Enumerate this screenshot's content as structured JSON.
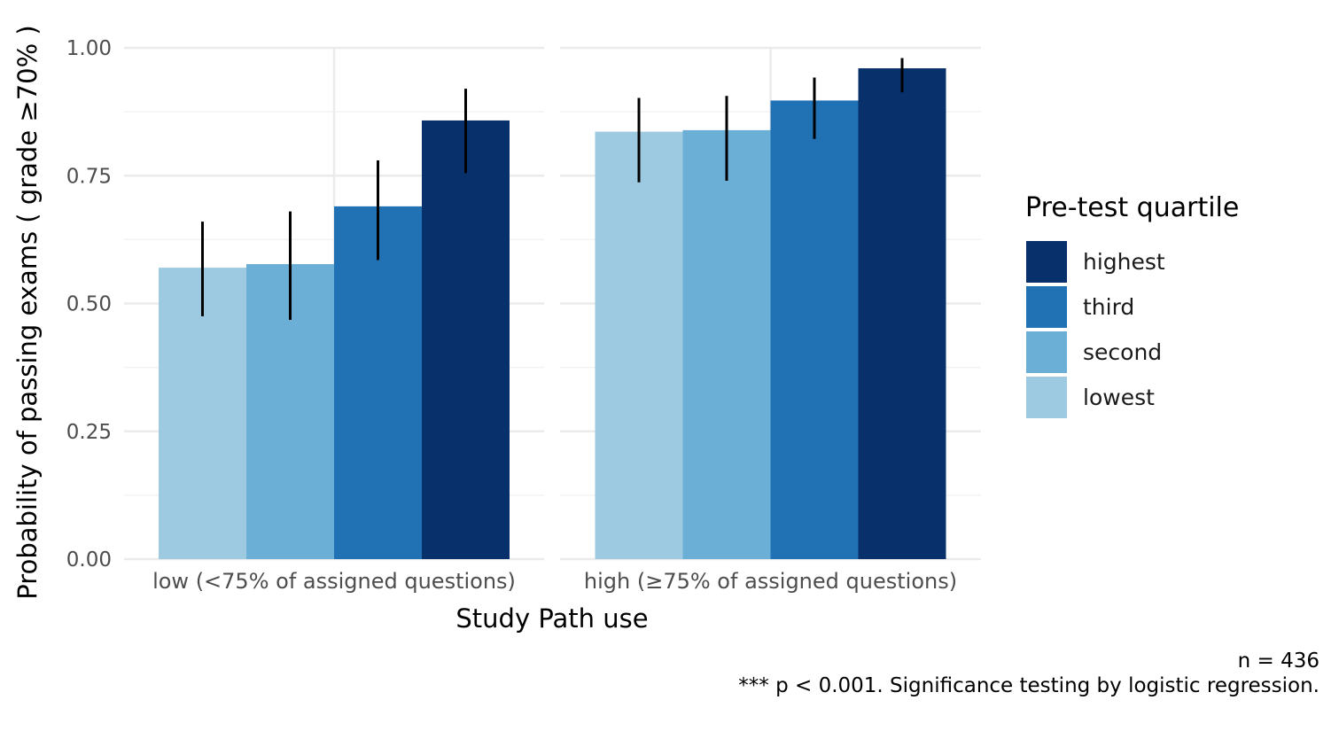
{
  "chart_data": {
    "type": "bar",
    "y_label": "Probability of passing exams ( grade ≥70% )",
    "x_label": "Study Path use",
    "ylim": [
      0,
      1
    ],
    "y_ticks": [
      "0.00",
      "0.25",
      "0.50",
      "0.75",
      "1.00"
    ],
    "y_tick_values": [
      0,
      0.25,
      0.5,
      0.75,
      1.0
    ],
    "grid": true,
    "legend": {
      "title": "Pre-test quartile",
      "placement": "right",
      "entries": [
        "highest",
        "third",
        "second",
        "lowest"
      ]
    },
    "facets": [
      {
        "label": "low (<75% of assigned questions)",
        "bars": [
          {
            "group": "lowest",
            "value": 0.57,
            "ci_low": 0.475,
            "ci_high": 0.66
          },
          {
            "group": "second",
            "value": 0.577,
            "ci_low": 0.468,
            "ci_high": 0.68
          },
          {
            "group": "third",
            "value": 0.69,
            "ci_low": 0.585,
            "ci_high": 0.78
          },
          {
            "group": "highest",
            "value": 0.858,
            "ci_low": 0.755,
            "ci_high": 0.92
          }
        ]
      },
      {
        "label": "high (≥75% of assigned questions)",
        "bars": [
          {
            "group": "lowest",
            "value": 0.836,
            "ci_low": 0.737,
            "ci_high": 0.902
          },
          {
            "group": "second",
            "value": 0.839,
            "ci_low": 0.74,
            "ci_high": 0.906
          },
          {
            "group": "third",
            "value": 0.897,
            "ci_low": 0.822,
            "ci_high": 0.942
          },
          {
            "group": "highest",
            "value": 0.96,
            "ci_low": 0.913,
            "ci_high": 0.98
          }
        ]
      }
    ],
    "colors": {
      "highest": "#08306b",
      "third": "#2171b5",
      "second": "#6baed6",
      "lowest": "#9ecae1"
    }
  },
  "caption": {
    "n_text": "n = 436",
    "note": "*** p < 0.001. Significance testing by logistic regression."
  }
}
